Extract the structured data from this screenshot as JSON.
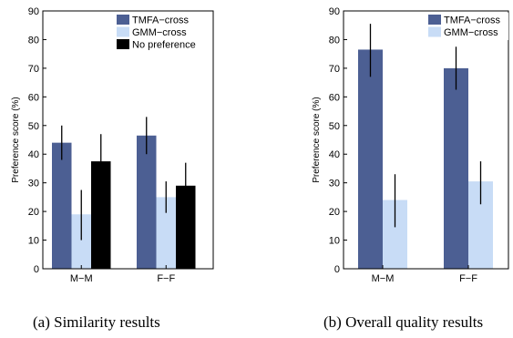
{
  "colors": {
    "tmfa": "#4c5f93",
    "gmm": "#c8dcf6",
    "nopref": "#000000"
  },
  "captions": [
    "(a) Similarity results",
    "(b) Overall quality results"
  ],
  "chart_data": [
    {
      "type": "bar",
      "title": "",
      "xlabel": "",
      "ylabel": "Preference score (%)",
      "ylim": [
        0,
        90
      ],
      "yticks": [
        0,
        10,
        20,
        30,
        40,
        50,
        60,
        70,
        80,
        90
      ],
      "categories": [
        "M−M",
        "F−F"
      ],
      "legend": "top-right",
      "series": [
        {
          "name": "TMFA−cross",
          "color": "tmfa",
          "values": [
            44,
            46.5
          ],
          "err_low": [
            38,
            40
          ],
          "err_high": [
            50,
            53
          ]
        },
        {
          "name": "GMM−cross",
          "color": "gmm",
          "values": [
            19,
            25
          ],
          "err_low": [
            10,
            19.5
          ],
          "err_high": [
            27.5,
            30.5
          ]
        },
        {
          "name": "No preference",
          "color": "nopref",
          "values": [
            37.5,
            29
          ],
          "err_low": [
            28,
            21
          ],
          "err_high": [
            47,
            37
          ]
        }
      ]
    },
    {
      "type": "bar",
      "title": "",
      "xlabel": "",
      "ylabel": "Preference score (%)",
      "ylim": [
        0,
        90
      ],
      "yticks": [
        0,
        10,
        20,
        30,
        40,
        50,
        60,
        70,
        80,
        90
      ],
      "categories": [
        "M−M",
        "F−F"
      ],
      "legend": "top-right",
      "series": [
        {
          "name": "TMFA−cross",
          "color": "tmfa",
          "values": [
            76.5,
            70
          ],
          "err_low": [
            67,
            62.5
          ],
          "err_high": [
            85.5,
            77.5
          ]
        },
        {
          "name": "GMM−cross",
          "color": "gmm",
          "values": [
            24,
            30.5
          ],
          "err_low": [
            14.5,
            22.5
          ],
          "err_high": [
            33,
            37.5
          ]
        }
      ]
    }
  ]
}
